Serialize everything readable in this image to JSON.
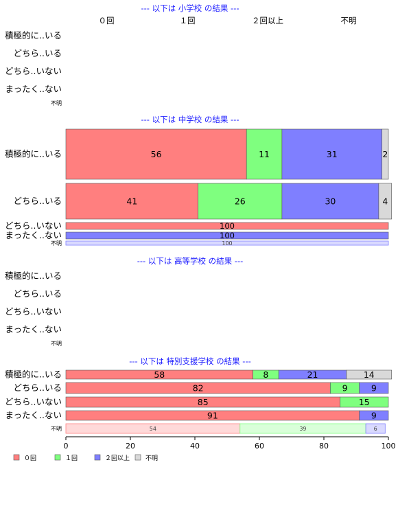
{
  "chart_data": {
    "type": "bar",
    "orientation": "horizontal",
    "stacked": true,
    "percent": true,
    "xlim": [
      0,
      100
    ],
    "xticks": [
      0,
      20,
      40,
      60,
      80,
      100
    ],
    "categories": [
      "０回",
      "１回",
      "２回以上",
      "不明"
    ],
    "colors": {
      "０回": "#ff7f7f",
      "１回": "#7fff7f",
      "２回以上": "#7f7fff",
      "不明": "#d9d9d9"
    },
    "total_colors": {
      "０回": "#ffd9d9",
      "１回": "#d9ffd9",
      "２回以上": "#d9d9ff",
      "不明": "#f0f0f0"
    },
    "legend_position": "bottom-left",
    "panels": [
      {
        "title": "--- 以下は 小学校 の結果 ---",
        "show_category_header": true,
        "rows": [
          {
            "label": "積極的に..いる",
            "values": []
          },
          {
            "label": "どちら..いる",
            "values": []
          },
          {
            "label": "どちら..いない",
            "values": []
          },
          {
            "label": "まったく..ない",
            "values": []
          }
        ],
        "total": {
          "label": "不明",
          "values": []
        }
      },
      {
        "title": "--- 以下は 中学校 の結果 ---",
        "show_category_header": false,
        "rows": [
          {
            "label": "積極的に..いる",
            "values": [
              56,
              11,
              31,
              2
            ]
          },
          {
            "label": "どちら..いる",
            "values": [
              41,
              26,
              30,
              4
            ]
          },
          {
            "label": "どちら..いない",
            "values": [
              100,
              0,
              0,
              0
            ]
          },
          {
            "label": "まったく..ない",
            "values": [
              0,
              0,
              100,
              0
            ]
          }
        ],
        "total": {
          "label": "不明",
          "values": [
            0,
            0,
            100,
            0
          ]
        }
      },
      {
        "title": "--- 以下は 高等学校 の結果 ---",
        "show_category_header": false,
        "rows": [
          {
            "label": "積極的に..いる",
            "values": []
          },
          {
            "label": "どちら..いる",
            "values": []
          },
          {
            "label": "どちら..いない",
            "values": []
          },
          {
            "label": "まったく..ない",
            "values": []
          }
        ],
        "total": {
          "label": "不明",
          "values": []
        }
      },
      {
        "title": "--- 以下は 特別支援学校 の結果 ---",
        "show_category_header": false,
        "rows": [
          {
            "label": "積極的に..いる",
            "values": [
              58,
              8,
              21,
              14
            ]
          },
          {
            "label": "どちら..いる",
            "values": [
              82,
              9,
              9,
              0
            ]
          },
          {
            "label": "どちら..いない",
            "values": [
              85,
              15,
              0,
              0
            ]
          },
          {
            "label": "まったく..ない",
            "values": [
              91,
              0,
              9,
              0
            ]
          }
        ],
        "total": {
          "label": "不明",
          "values": [
            54,
            39,
            6,
            0
          ]
        }
      }
    ]
  }
}
